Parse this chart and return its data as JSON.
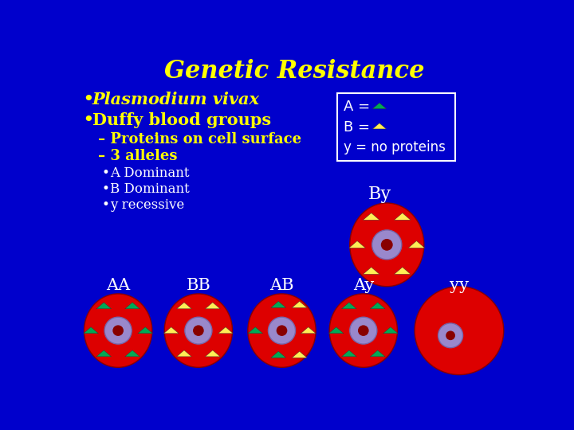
{
  "bg_color": "#0000cc",
  "title": "Genetic Resistance",
  "title_color": "#ffff00",
  "title_fontsize": 22,
  "bullet_color": "#ffff00",
  "bullet1": "Plasmodium vivax",
  "bullet2": "Duffy blood groups",
  "sub1": "– Proteins on cell surface",
  "sub2": "– 3 alleles",
  "sub_bullets": [
    "A Dominant",
    "B Dominant",
    "y recessive"
  ],
  "color_A": "#00aa55",
  "color_B": "#ffee55",
  "cell_red": "#dd0000",
  "cell_purple": "#9988cc",
  "cell_dark_red": "#880000",
  "cell_by_label": "By",
  "white": "#ffffff"
}
